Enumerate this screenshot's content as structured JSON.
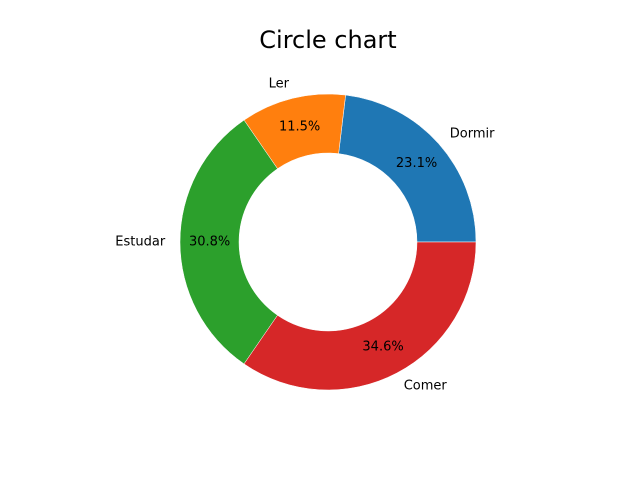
{
  "chart_data": {
    "type": "pie",
    "donut": true,
    "title": "Circle chart",
    "categories": [
      "Dormir",
      "Ler",
      "Estudar",
      "Comer"
    ],
    "values": [
      23.1,
      11.5,
      30.8,
      34.6
    ],
    "percent_labels": [
      "23.1%",
      "11.5%",
      "30.8%",
      "34.6%"
    ],
    "colors": [
      "#1f77b4",
      "#ff7f0e",
      "#2ca02c",
      "#d62728"
    ],
    "legend": "none"
  }
}
